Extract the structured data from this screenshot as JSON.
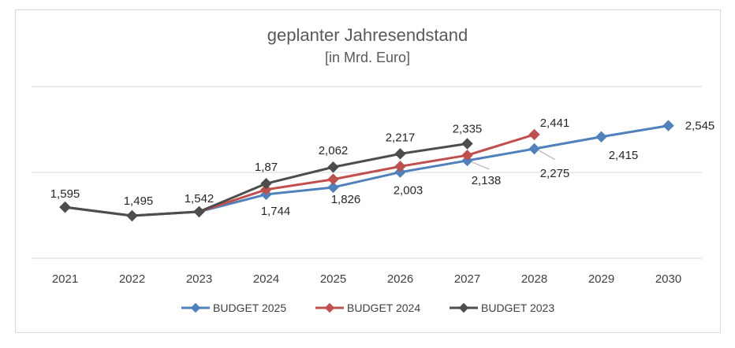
{
  "chart_data": {
    "type": "line",
    "title": "geplanter Jahresendstand",
    "subtitle": "[in Mrd. Euro]",
    "categories": [
      "2021",
      "2022",
      "2023",
      "2024",
      "2025",
      "2026",
      "2027",
      "2028",
      "2029",
      "2030"
    ],
    "ylim": [
      1.0,
      3.0
    ],
    "grid": true,
    "legend_position": "bottom",
    "series": [
      {
        "name": "BUDGET 2025",
        "color": "#4f81bd",
        "values": [
          1.595,
          1.495,
          1.542,
          1.744,
          1.826,
          2.003,
          2.138,
          2.275,
          2.415,
          2.545
        ],
        "labels": [
          "1,595",
          "1,495",
          "1,542",
          "1,744",
          "1,826",
          "2,003",
          "2,138",
          "2,275",
          "2,415",
          "2,545"
        ]
      },
      {
        "name": "BUDGET 2024",
        "color": "#c0504d",
        "values": [
          1.595,
          1.495,
          1.542,
          1.8,
          1.92,
          2.07,
          2.2,
          2.441,
          null,
          null
        ],
        "labels": [
          null,
          null,
          null,
          null,
          null,
          null,
          null,
          "2,441",
          null,
          null
        ]
      },
      {
        "name": "BUDGET 2023",
        "color": "#4d4d4d",
        "values": [
          1.595,
          1.495,
          1.542,
          1.87,
          2.062,
          2.217,
          2.335,
          null,
          null,
          null
        ],
        "labels": [
          null,
          null,
          null,
          "1,87",
          "2,062",
          "2,217",
          "2,335",
          null,
          null,
          null
        ]
      }
    ]
  }
}
